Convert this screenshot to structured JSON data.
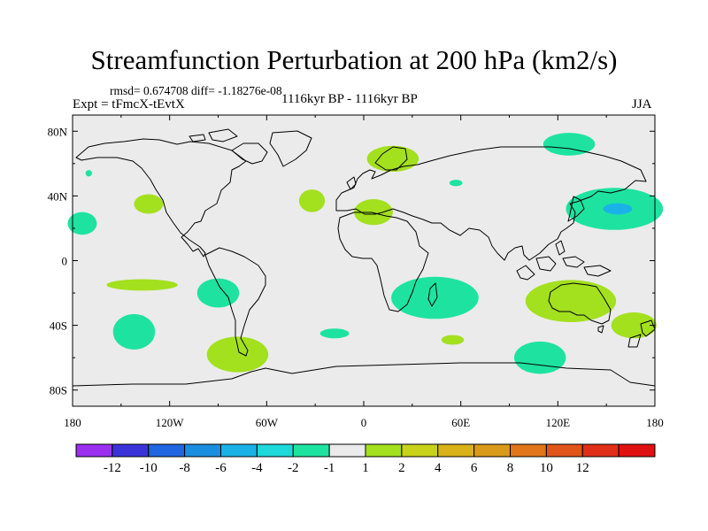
{
  "chart_data": {
    "type": "heatmap",
    "title": "Streamfunction Perturbation at 200 hPa (km2/s)",
    "stats_text": "rmsd= 0.674708 diff= -1.18276e-08",
    "left_subtitle": "Expt = tFmcX-tEvtX",
    "center_subtitle": "1116kyr BP - 1116kyr BP",
    "right_subtitle": "JJA",
    "xlim": [
      -180,
      180
    ],
    "ylim": [
      -90,
      90
    ],
    "x_ticks": [
      {
        "value": -180,
        "label": "180"
      },
      {
        "value": -120,
        "label": "120W"
      },
      {
        "value": -60,
        "label": "60W"
      },
      {
        "value": 0,
        "label": "0"
      },
      {
        "value": 60,
        "label": "60E"
      },
      {
        "value": 120,
        "label": "120E"
      },
      {
        "value": 180,
        "label": "180"
      }
    ],
    "y_ticks": [
      {
        "value": 80,
        "label": "80N"
      },
      {
        "value": 40,
        "label": "40N"
      },
      {
        "value": 0,
        "label": "0"
      },
      {
        "value": -40,
        "label": "40S"
      },
      {
        "value": -80,
        "label": "80S"
      }
    ],
    "colorbar": {
      "colors": [
        "#9b30f0",
        "#3a34d8",
        "#1f66e0",
        "#1a8fe0",
        "#1ab2e6",
        "#1ed9d9",
        "#1ee3a0",
        "#ebebeb",
        "#a3e01e",
        "#c8d219",
        "#d9b219",
        "#d99a19",
        "#e07519",
        "#e05519",
        "#e02e19",
        "#e01111"
      ],
      "labels": [
        "-12",
        "-10",
        "-8",
        "-6",
        "-4",
        "-2",
        "-1",
        "1",
        "2",
        "4",
        "6",
        "8",
        "10",
        "12"
      ]
    },
    "anomalies": [
      {
        "lon": -174,
        "lat": 23,
        "rx": 9,
        "ry": 7,
        "level": "-2"
      },
      {
        "lon": -170,
        "lat": 54,
        "rx": 2,
        "ry": 2,
        "level": "-2"
      },
      {
        "lon": -133,
        "lat": 35,
        "rx": 9,
        "ry": 6,
        "level": "2"
      },
      {
        "lon": -137,
        "lat": -15,
        "rx": 22,
        "ry": 3.5,
        "level": "2"
      },
      {
        "lon": -142,
        "lat": -44,
        "rx": 13,
        "ry": 11,
        "level": "-2"
      },
      {
        "lon": -90,
        "lat": -20,
        "rx": 13,
        "ry": 9,
        "level": "-2"
      },
      {
        "lon": -78,
        "lat": -58,
        "rx": 19,
        "ry": 11,
        "level": "2"
      },
      {
        "lon": -32,
        "lat": 37,
        "rx": 8,
        "ry": 7,
        "level": "2"
      },
      {
        "lon": 18,
        "lat": 63,
        "rx": 16,
        "ry": 8,
        "level": "2"
      },
      {
        "lon": 6,
        "lat": 30,
        "rx": 12,
        "ry": 8,
        "level": "2"
      },
      {
        "lon": 57,
        "lat": 48,
        "rx": 4,
        "ry": 2,
        "level": "-2"
      },
      {
        "lon": 44,
        "lat": -23,
        "rx": 27,
        "ry": 13,
        "level": "-2"
      },
      {
        "lon": -18,
        "lat": -45,
        "rx": 9,
        "ry": 3,
        "level": "-2"
      },
      {
        "lon": 55,
        "lat": -49,
        "rx": 7,
        "ry": 3,
        "level": "2"
      },
      {
        "lon": 127,
        "lat": 72,
        "rx": 16,
        "ry": 7,
        "level": "-2"
      },
      {
        "lon": 155,
        "lat": 32,
        "rx": 30,
        "ry": 13,
        "level": "-2"
      },
      {
        "lon": 157,
        "lat": 32,
        "rx": 9,
        "ry": 3.5,
        "level": "-4"
      },
      {
        "lon": 128,
        "lat": -25,
        "rx": 28,
        "ry": 13,
        "level": "2"
      },
      {
        "lon": 167,
        "lat": -40,
        "rx": 14,
        "ry": 8,
        "level": "2"
      },
      {
        "lon": 109,
        "lat": -60,
        "rx": 16,
        "ry": 10,
        "level": "-2"
      }
    ]
  }
}
